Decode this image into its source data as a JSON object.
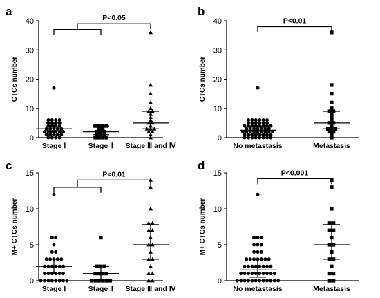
{
  "chart_data": [
    {
      "panel_label": "a",
      "type": "scatter",
      "ylabel": "CTCs number",
      "ylim": [
        0,
        40
      ],
      "yticks": [
        0,
        10,
        20,
        30,
        40
      ],
      "categories": [
        "Stage Ⅰ",
        "Stage Ⅱ",
        "Stage Ⅲ and Ⅳ"
      ],
      "markers": [
        "circle",
        "square",
        "triangle"
      ],
      "summary": [
        {
          "median": 3,
          "q1": 1,
          "q3": 5
        },
        {
          "median": 2,
          "q1": 1,
          "q3": 4
        },
        {
          "median": 5,
          "q1": 3,
          "q3": 9
        }
      ],
      "points": [
        [
          0,
          0,
          0,
          0,
          1,
          1,
          1,
          1,
          1,
          2,
          2,
          2,
          2,
          2,
          2,
          3,
          3,
          3,
          3,
          3,
          4,
          4,
          4,
          4,
          5,
          5,
          5,
          5,
          6,
          6,
          6,
          6,
          17
        ],
        [
          0,
          0,
          0,
          0,
          1,
          1,
          1,
          2,
          2,
          2,
          3,
          3,
          4,
          4,
          4,
          4
        ],
        [
          0,
          1,
          2,
          2,
          3,
          3,
          3,
          4,
          5,
          5,
          6,
          7,
          8,
          9,
          9,
          10,
          12,
          15,
          18,
          36
        ]
      ],
      "comparisons": [
        {
          "from": 0,
          "to": 1,
          "y": 37,
          "top_y": 39,
          "top_target": 2,
          "label": "P<0.05"
        }
      ]
    },
    {
      "panel_label": "b",
      "type": "scatter",
      "ylabel": "CTCs number",
      "ylim": [
        0,
        40
      ],
      "yticks": [
        0,
        10,
        20,
        30,
        40
      ],
      "categories": [
        "No metastasis",
        "Metastasis"
      ],
      "markers": [
        "circle",
        "square"
      ],
      "summary": [
        {
          "median": 2.5,
          "q1": 1,
          "q3": 4
        },
        {
          "median": 5,
          "q1": 3,
          "q3": 9
        }
      ],
      "points": [
        [
          0,
          0,
          0,
          0,
          0,
          0,
          0,
          0,
          1,
          1,
          1,
          1,
          1,
          1,
          1,
          1,
          2,
          2,
          2,
          2,
          2,
          2,
          2,
          2,
          2,
          3,
          3,
          3,
          3,
          3,
          3,
          3,
          4,
          4,
          4,
          4,
          4,
          4,
          4,
          4,
          5,
          5,
          5,
          5,
          5,
          5,
          6,
          6,
          6,
          6,
          6,
          6,
          17
        ],
        [
          0,
          1,
          2,
          2,
          3,
          3,
          3,
          4,
          5,
          5,
          6,
          7,
          8,
          9,
          9,
          10,
          12,
          15,
          18,
          36
        ]
      ],
      "comparisons": [
        {
          "from": 0,
          "to": 1,
          "y": 38,
          "label": "P<0.01"
        }
      ]
    },
    {
      "panel_label": "c",
      "type": "scatter",
      "ylabel": "M+ CTCs number",
      "ylim": [
        0,
        15
      ],
      "yticks": [
        0,
        5,
        10,
        15
      ],
      "categories": [
        "Stage Ⅰ",
        "Stage Ⅱ",
        "Stage Ⅲ and Ⅳ"
      ],
      "markers": [
        "circle",
        "square",
        "triangle"
      ],
      "summary": [
        {
          "median": 2,
          "q1": 1,
          "q3": 3
        },
        {
          "median": 1,
          "q1": 0,
          "q3": 2
        },
        {
          "median": 5,
          "q1": 3,
          "q3": 7.8
        }
      ],
      "points": [
        [
          0,
          0,
          0,
          0,
          0,
          0,
          0,
          0,
          1,
          1,
          1,
          1,
          1,
          1,
          2,
          2,
          2,
          2,
          2,
          2,
          3,
          3,
          3,
          3,
          3,
          4,
          4,
          5,
          6,
          6,
          12
        ],
        [
          0,
          0,
          0,
          0,
          0,
          0,
          1,
          1,
          1,
          1,
          2,
          2,
          2,
          6
        ],
        [
          0,
          0,
          1,
          1,
          2,
          3,
          3,
          4,
          5,
          5,
          6,
          7,
          7,
          8,
          8,
          10,
          13,
          14
        ]
      ],
      "comparisons": [
        {
          "from": 0,
          "to": 1,
          "y": 13.0,
          "top_y": 14.0,
          "top_target": 2,
          "label": "P<0.01"
        }
      ]
    },
    {
      "panel_label": "d",
      "type": "scatter",
      "ylabel": "M+ CTCs number",
      "ylim": [
        0,
        15
      ],
      "yticks": [
        0,
        5,
        10,
        15
      ],
      "categories": [
        "No metastasis",
        "Metastasis"
      ],
      "markers": [
        "circle",
        "square"
      ],
      "summary": [
        {
          "median": 1.5,
          "q1": 0.5,
          "q3": 3
        },
        {
          "median": 5,
          "q1": 3,
          "q3": 7.8
        }
      ],
      "points": [
        [
          0,
          0,
          0,
          0,
          0,
          0,
          0,
          0,
          0,
          0,
          0,
          0,
          1,
          1,
          1,
          1,
          1,
          1,
          1,
          1,
          1,
          1,
          2,
          2,
          2,
          2,
          2,
          2,
          2,
          2,
          3,
          3,
          3,
          3,
          3,
          3,
          3,
          4,
          4,
          4,
          5,
          5,
          5,
          6,
          6,
          6,
          12
        ],
        [
          0,
          0,
          1,
          1,
          2,
          3,
          3,
          4,
          5,
          5,
          6,
          7,
          7,
          8,
          8,
          10,
          13,
          14
        ]
      ],
      "comparisons": [
        {
          "from": 0,
          "to": 1,
          "y": 14.2,
          "label": "P<0.001"
        }
      ]
    }
  ]
}
